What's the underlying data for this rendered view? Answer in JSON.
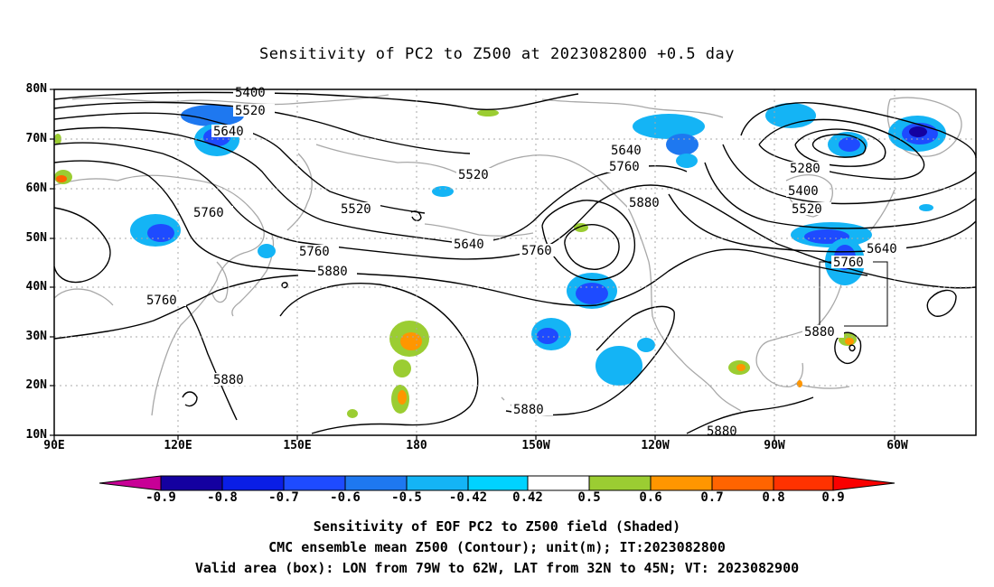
{
  "title": "Sensitivity of PC2 to Z500 at 2023082800 +0.5 day",
  "lat_labels": [
    "80N",
    "70N",
    "60N",
    "50N",
    "40N",
    "30N",
    "20N",
    "10N"
  ],
  "lon_labels": [
    "90E",
    "120E",
    "150E",
    "180",
    "150W",
    "120W",
    "90W",
    "60W"
  ],
  "contour_labels": [
    "5400",
    "5520",
    "5640",
    "5760",
    "5880",
    "5280"
  ],
  "colorbar": {
    "labels": [
      "-0.9",
      "-0.8",
      "-0.7",
      "-0.6",
      "-0.5",
      "-0.42",
      "0.42",
      "0.5",
      "0.6",
      "0.7",
      "0.8",
      "0.9"
    ],
    "colors": [
      "#c80096",
      "#1400a0",
      "#0a1ee6",
      "#1e4bff",
      "#1e78f0",
      "#14b4f5",
      "#00d2ff",
      "#ffffff",
      "#9bcd32",
      "#ff9600",
      "#ff6400",
      "#ff3200",
      "#fa0000",
      "#f5a0c8"
    ]
  },
  "captions": [
    "Sensitivity of EOF PC2 to Z500 field (Shaded)",
    "CMC ensemble mean Z500 (Contour); unit(m); IT:2023082800",
    "Valid area (box): LON from 79W to 62W, LAT from 32N to 45N; VT: 2023082900"
  ]
}
